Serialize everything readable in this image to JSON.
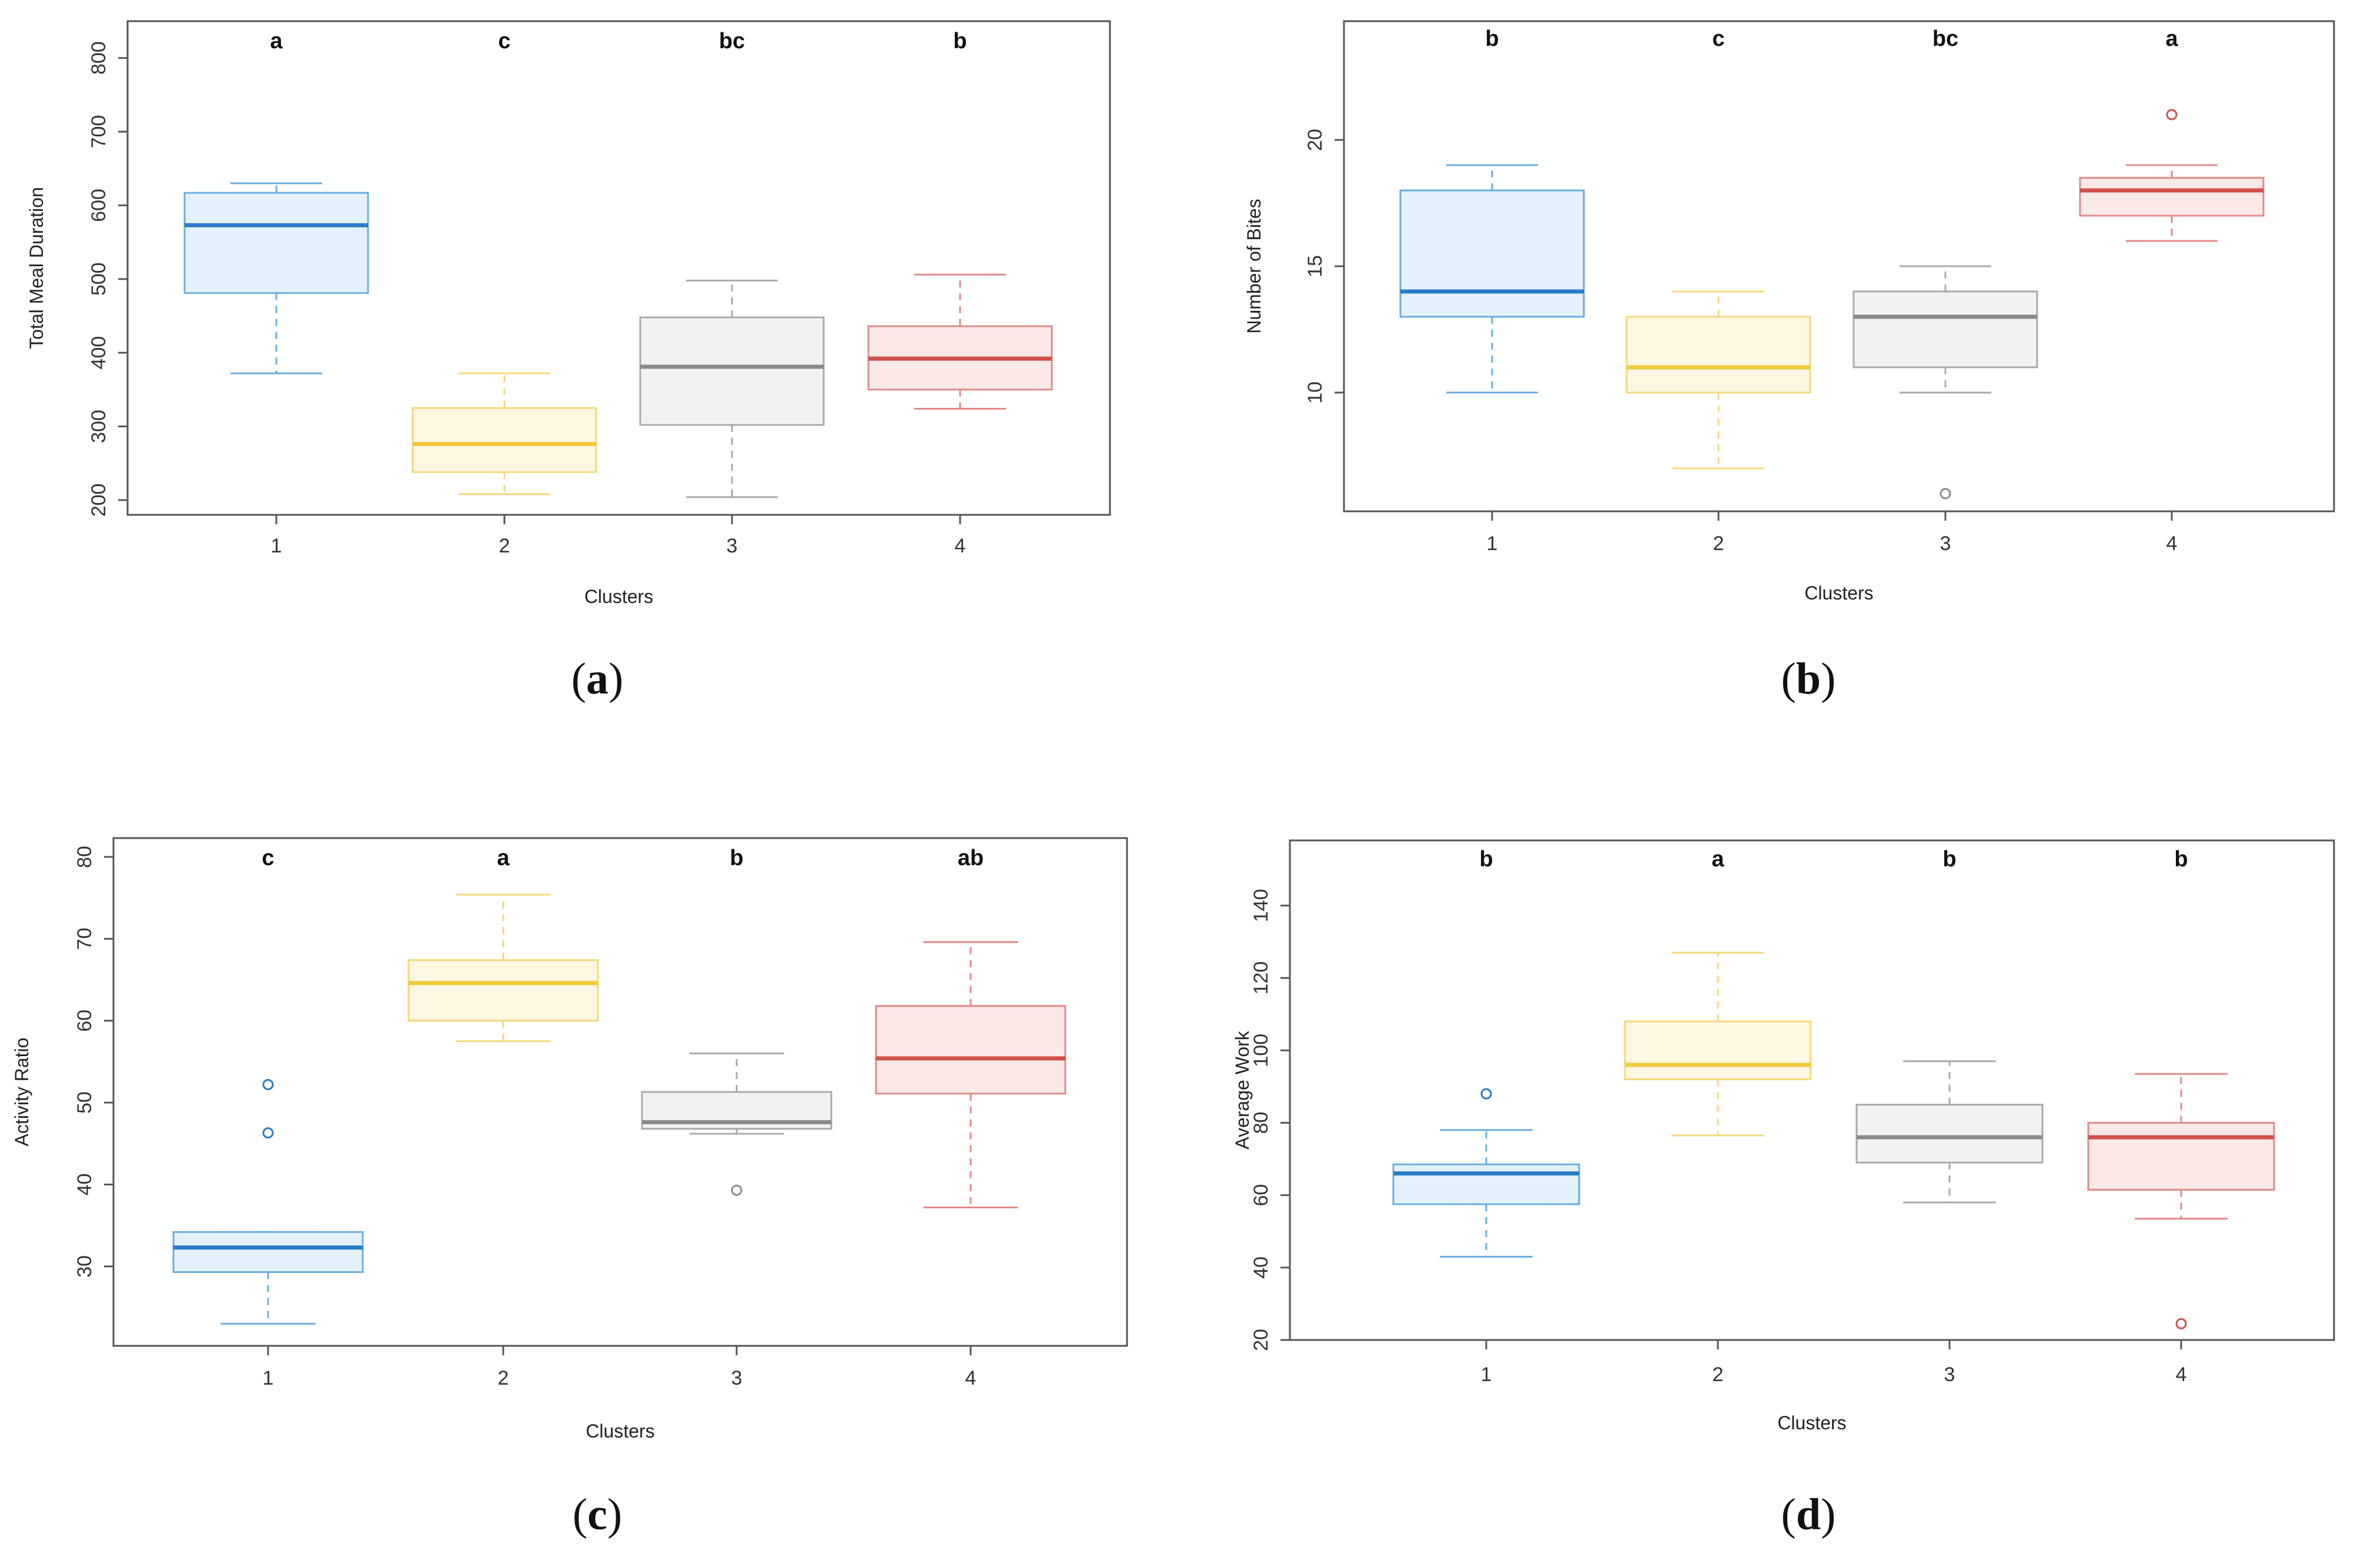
{
  "chart_data": [
    {
      "type": "boxplot",
      "panel_label": "a",
      "xlabel": "Clusters",
      "ylabel": "Total Meal Duration",
      "ylim": [
        180,
        850
      ],
      "yticks": [
        200,
        300,
        400,
        500,
        600,
        700,
        800
      ],
      "categories": [
        "1",
        "2",
        "3",
        "4"
      ],
      "boxes": [
        {
          "whisker_low": 372,
          "q1": 481,
          "median": 573,
          "q3": 617,
          "whisker_high": 630,
          "outliers": []
        },
        {
          "whisker_low": 208,
          "q1": 238,
          "median": 276,
          "q3": 325,
          "whisker_high": 372,
          "outliers": []
        },
        {
          "whisker_low": 204,
          "q1": 302,
          "median": 381,
          "q3": 448,
          "whisker_high": 498,
          "outliers": []
        },
        {
          "whisker_low": 324,
          "q1": 350,
          "median": 392,
          "q3": 436,
          "whisker_high": 506,
          "outliers": []
        }
      ],
      "significance": [
        "a",
        "c",
        "bc",
        "b"
      ]
    },
    {
      "type": "boxplot",
      "panel_label": "b",
      "xlabel": "Clusters",
      "ylabel": "Number of Bites",
      "ylim": [
        5.3,
        24.7
      ],
      "yticks": [
        10,
        15,
        20
      ],
      "categories": [
        "1",
        "2",
        "3",
        "4"
      ],
      "boxes": [
        {
          "whisker_low": 10,
          "q1": 13,
          "median": 14,
          "q3": 18,
          "whisker_high": 19,
          "outliers": []
        },
        {
          "whisker_low": 7,
          "q1": 10,
          "median": 11,
          "q3": 13,
          "whisker_high": 14,
          "outliers": []
        },
        {
          "whisker_low": 10,
          "q1": 11,
          "median": 13,
          "q3": 14,
          "whisker_high": 15,
          "outliers": [
            6
          ]
        },
        {
          "whisker_low": 16,
          "q1": 17,
          "median": 18,
          "q3": 18.5,
          "whisker_high": 19,
          "outliers": [
            21
          ]
        }
      ],
      "significance": [
        "b",
        "c",
        "bc",
        "a"
      ]
    },
    {
      "type": "boxplot",
      "panel_label": "c",
      "xlabel": "Clusters",
      "ylabel": "Activity Ratio",
      "ylim": [
        20.3,
        82.3
      ],
      "yticks": [
        30,
        40,
        50,
        60,
        70,
        80
      ],
      "categories": [
        "1",
        "2",
        "3",
        "4"
      ],
      "boxes": [
        {
          "whisker_low": 23,
          "q1": 29.3,
          "median": 32.3,
          "q3": 34.2,
          "whisker_high": 34.2,
          "outliers": [
            46.3,
            52.2
          ]
        },
        {
          "whisker_low": 57.5,
          "q1": 60,
          "median": 64.6,
          "q3": 67.4,
          "whisker_high": 75.4,
          "outliers": []
        },
        {
          "whisker_low": 46.2,
          "q1": 46.8,
          "median": 47.6,
          "q3": 51.3,
          "whisker_high": 56,
          "outliers": [
            39.3
          ]
        },
        {
          "whisker_low": 37.2,
          "q1": 51.1,
          "median": 55.4,
          "q3": 61.8,
          "whisker_high": 69.6,
          "outliers": []
        }
      ],
      "significance": [
        "c",
        "a",
        "b",
        "ab"
      ]
    },
    {
      "type": "boxplot",
      "panel_label": "d",
      "xlabel": "Clusters",
      "ylabel": "Average Work",
      "ylim": [
        20,
        158
      ],
      "yticks": [
        20,
        40,
        60,
        80,
        100,
        120,
        140
      ],
      "categories": [
        "1",
        "2",
        "3",
        "4"
      ],
      "boxes": [
        {
          "whisker_low": 43,
          "q1": 57.5,
          "median": 66,
          "q3": 68.5,
          "whisker_high": 78,
          "outliers": [
            88
          ]
        },
        {
          "whisker_low": 76.5,
          "q1": 92,
          "median": 96,
          "q3": 108,
          "whisker_high": 127,
          "outliers": []
        },
        {
          "whisker_low": 58,
          "q1": 69,
          "median": 76,
          "q3": 85,
          "whisker_high": 97,
          "outliers": []
        },
        {
          "whisker_low": 53.5,
          "q1": 61.5,
          "median": 76,
          "q3": 80,
          "whisker_high": 93.5,
          "outliers": [
            24.5
          ]
        }
      ],
      "significance": [
        "b",
        "a",
        "b",
        "b"
      ]
    }
  ],
  "cluster_colors": [
    {
      "line": "#6aaee0",
      "fill": "#e4f1fa",
      "median": "#2a7bc8"
    },
    {
      "line": "#f6d77a",
      "fill": "#fdf6e0",
      "median": "#f0c93a"
    },
    {
      "line": "#aaaaaa",
      "fill": "#f2f2f2",
      "median": "#8a8a8a"
    },
    {
      "line": "#e08a86",
      "fill": "#fbe9e8",
      "median": "#d0504a"
    }
  ]
}
